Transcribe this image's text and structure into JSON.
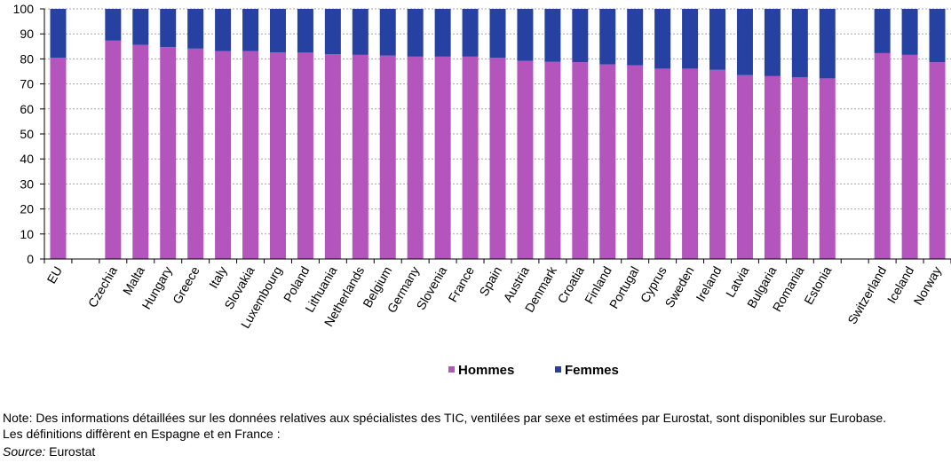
{
  "chart_data": {
    "type": "bar",
    "stacked": true,
    "categories": [
      "EU",
      "",
      "Czechia",
      "Malta",
      "Hungary",
      "Greece",
      "Italy",
      "Slovakia",
      "Luxembourg",
      "Poland",
      "Lithuania",
      "Netherlands",
      "Belgium",
      "Germany",
      "Slovenia",
      "France",
      "Spain",
      "Austria",
      "Denmark",
      "Croatia",
      "Finland",
      "Portugal",
      "Cyprus",
      "Sweden",
      "Ireland",
      "Latvia",
      "Bulgaria",
      "Romania",
      "Estonia",
      "",
      "Switzerland",
      "Iceland",
      "Norway"
    ],
    "series": [
      {
        "name": "Hommes",
        "color": "#b355bd",
        "values": [
          80.5,
          null,
          87.3,
          85.6,
          84.7,
          84.1,
          83.1,
          83.1,
          82.6,
          82.5,
          81.9,
          81.6,
          81.3,
          80.9,
          80.9,
          80.9,
          80.4,
          79.2,
          78.8,
          78.7,
          77.8,
          77.4,
          76.1,
          76.1,
          75.6,
          73.5,
          73.1,
          72.7,
          72.2,
          null,
          82.3,
          81.6,
          78.7
        ]
      },
      {
        "name": "Femmes",
        "color": "#2741a2",
        "values": [
          19.5,
          null,
          12.7,
          14.4,
          15.3,
          15.9,
          16.9,
          16.9,
          17.4,
          17.5,
          18.1,
          18.4,
          18.7,
          19.1,
          19.1,
          19.1,
          19.6,
          20.8,
          21.2,
          21.3,
          22.2,
          22.6,
          23.9,
          23.9,
          24.4,
          26.5,
          26.9,
          27.3,
          27.8,
          null,
          17.7,
          18.4,
          21.3
        ]
      }
    ],
    "yticks": [
      "0",
      "10",
      "20",
      "30",
      "40",
      "50",
      "60",
      "70",
      "80",
      "90",
      "100"
    ],
    "ylim": [
      0,
      100
    ],
    "grid": true,
    "legend": "bottom-center"
  },
  "note_text": "Note: Des informations détaillées sur les données relatives aux spécialistes des TIC, ventilées par sexe et estimées par Eurostat, sont disponibles sur Eurobase. Les définitions diffèrent en Espagne et en France :",
  "source_label": "Source:",
  "source_value": " Eurostat"
}
